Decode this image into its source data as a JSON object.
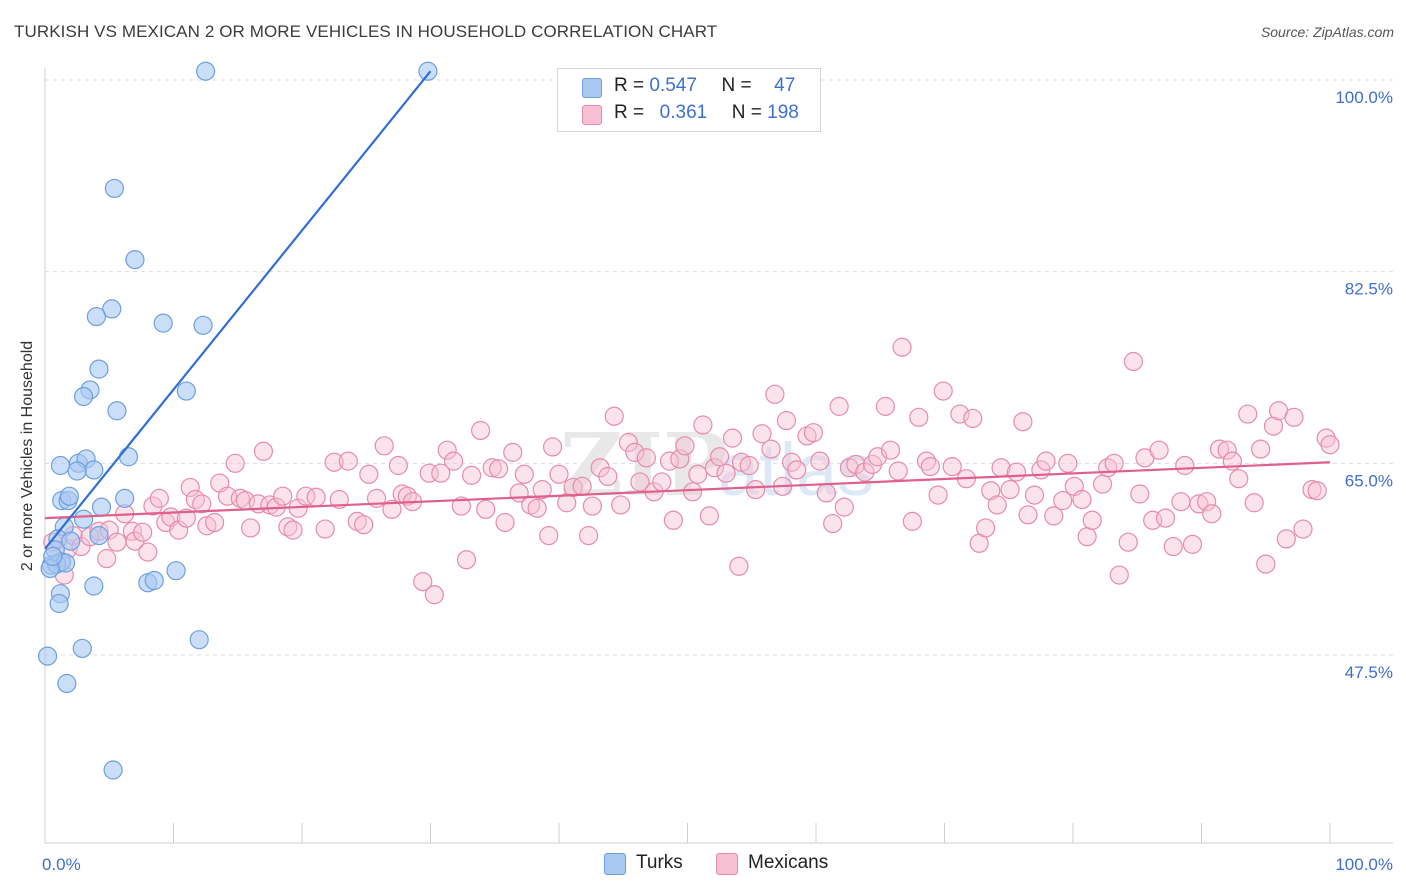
{
  "title": "TURKISH VS MEXICAN 2 OR MORE VEHICLES IN HOUSEHOLD CORRELATION CHART",
  "source": "Source: ZipAtlas.com",
  "colors": {
    "blue_fill": "#a9c8f2",
    "blue_stroke": "#6d9fe0",
    "blue_line": "#2f6fd6",
    "pink_fill": "#f6c0d2",
    "pink_stroke": "#e88bab",
    "pink_line": "#e0608c",
    "axis_text": "#3f6fcf",
    "grid": "#dddddd"
  },
  "legend": {
    "rows": [
      {
        "r_label": "R =",
        "r_value": "0.547",
        "n_label": "N =",
        "n_value": "47"
      },
      {
        "r_label": "R =",
        "r_value": "0.361",
        "n_label": "N =",
        "n_value": "198"
      }
    ]
  },
  "bottom_legend": {
    "turks": "Turks",
    "mexicans": "Mexicans"
  },
  "chart_data": {
    "type": "scatter",
    "title": "TURKISH VS MEXICAN 2 OR MORE VEHICLES IN HOUSEHOLD CORRELATION CHART",
    "xlabel": "",
    "ylabel": "2 or more Vehicles in Household",
    "xlim": [
      0,
      100
    ],
    "ylim": [
      33,
      102
    ],
    "x_tick_labels": [
      "0.0%",
      "100.0%"
    ],
    "y_ticks": [
      47.5,
      65.0,
      82.5,
      100.0
    ],
    "y_tick_labels": [
      "47.5%",
      "65.0%",
      "82.5%",
      "100.0%"
    ],
    "watermark": "ZIPatlas",
    "series": [
      {
        "name": "Turks",
        "r": 0.547,
        "n": 47,
        "trend": {
          "x": [
            0,
            30
          ],
          "y": [
            57.2,
            100.8
          ]
        },
        "points": [
          [
            12.5,
            100.8
          ],
          [
            29.8,
            100.8
          ],
          [
            5.4,
            90.1
          ],
          [
            7.0,
            83.6
          ],
          [
            5.2,
            79.1
          ],
          [
            4.0,
            78.4
          ],
          [
            9.2,
            77.8
          ],
          [
            12.3,
            77.6
          ],
          [
            4.2,
            73.6
          ],
          [
            3.5,
            71.7
          ],
          [
            3.0,
            71.1
          ],
          [
            11.0,
            71.6
          ],
          [
            5.6,
            69.8
          ],
          [
            1.2,
            64.8
          ],
          [
            2.6,
            65.0
          ],
          [
            3.2,
            65.4
          ],
          [
            3.8,
            64.4
          ],
          [
            6.5,
            65.6
          ],
          [
            1.3,
            61.6
          ],
          [
            1.8,
            61.6
          ],
          [
            4.4,
            61.0
          ],
          [
            6.2,
            61.8
          ],
          [
            3.0,
            59.9
          ],
          [
            1.5,
            59.2
          ],
          [
            1.0,
            58.1
          ],
          [
            2.0,
            57.9
          ],
          [
            4.2,
            58.4
          ],
          [
            0.8,
            57.1
          ],
          [
            1.3,
            56.0
          ],
          [
            0.5,
            55.7
          ],
          [
            0.9,
            55.8
          ],
          [
            1.6,
            55.9
          ],
          [
            0.4,
            55.4
          ],
          [
            1.2,
            53.1
          ],
          [
            3.8,
            53.8
          ],
          [
            8.0,
            54.1
          ],
          [
            8.5,
            54.3
          ],
          [
            10.2,
            55.2
          ],
          [
            1.1,
            52.2
          ],
          [
            2.9,
            48.1
          ],
          [
            12.0,
            48.9
          ],
          [
            0.2,
            47.4
          ],
          [
            1.7,
            44.9
          ],
          [
            5.3,
            37.0
          ],
          [
            2.5,
            64.3
          ],
          [
            0.6,
            56.5
          ],
          [
            1.9,
            62.0
          ]
        ]
      },
      {
        "name": "Mexicans",
        "r": 0.361,
        "n": 198,
        "trend": {
          "x": [
            0,
            100
          ],
          "y": [
            60.0,
            65.1
          ]
        },
        "points": [
          [
            0.6,
            57.8
          ],
          [
            1.2,
            56.0
          ],
          [
            1.5,
            54.8
          ],
          [
            1.8,
            57.2
          ],
          [
            2.2,
            58.4
          ],
          [
            2.8,
            57.4
          ],
          [
            3.5,
            58.3
          ],
          [
            4.2,
            58.8
          ],
          [
            4.8,
            56.3
          ],
          [
            5.0,
            58.9
          ],
          [
            5.6,
            57.8
          ],
          [
            6.2,
            60.4
          ],
          [
            6.8,
            58.8
          ],
          [
            7.0,
            57.9
          ],
          [
            7.6,
            58.7
          ],
          [
            8.0,
            56.9
          ],
          [
            8.4,
            61.1
          ],
          [
            8.9,
            61.8
          ],
          [
            9.4,
            59.6
          ],
          [
            9.8,
            60.1
          ],
          [
            10.4,
            58.9
          ],
          [
            11.0,
            60.0
          ],
          [
            11.3,
            62.8
          ],
          [
            11.7,
            61.7
          ],
          [
            12.2,
            61.3
          ],
          [
            12.6,
            59.3
          ],
          [
            13.2,
            59.6
          ],
          [
            13.6,
            63.2
          ],
          [
            14.2,
            62.0
          ],
          [
            14.8,
            65.0
          ],
          [
            15.2,
            61.8
          ],
          [
            15.6,
            61.6
          ],
          [
            16.0,
            59.1
          ],
          [
            16.6,
            61.3
          ],
          [
            17.0,
            66.1
          ],
          [
            17.5,
            61.2
          ],
          [
            18.0,
            61.0
          ],
          [
            18.5,
            62.0
          ],
          [
            18.9,
            59.2
          ],
          [
            19.3,
            58.9
          ],
          [
            19.7,
            60.9
          ],
          [
            20.3,
            62.0
          ],
          [
            21.1,
            61.9
          ],
          [
            21.8,
            59.0
          ],
          [
            22.5,
            65.1
          ],
          [
            22.9,
            61.7
          ],
          [
            23.6,
            65.2
          ],
          [
            24.3,
            59.7
          ],
          [
            24.8,
            59.4
          ],
          [
            25.2,
            64.0
          ],
          [
            25.8,
            61.8
          ],
          [
            26.4,
            66.6
          ],
          [
            27.0,
            60.8
          ],
          [
            27.5,
            64.8
          ],
          [
            27.8,
            62.2
          ],
          [
            28.2,
            62.0
          ],
          [
            28.6,
            61.5
          ],
          [
            29.4,
            54.2
          ],
          [
            29.9,
            64.1
          ],
          [
            30.3,
            53.0
          ],
          [
            30.8,
            64.1
          ],
          [
            31.3,
            66.2
          ],
          [
            31.8,
            65.2
          ],
          [
            32.4,
            61.1
          ],
          [
            32.8,
            56.2
          ],
          [
            33.2,
            63.9
          ],
          [
            33.9,
            68.0
          ],
          [
            34.3,
            60.8
          ],
          [
            34.8,
            64.6
          ],
          [
            35.3,
            64.5
          ],
          [
            35.8,
            59.6
          ],
          [
            36.4,
            66.0
          ],
          [
            36.9,
            62.3
          ],
          [
            37.3,
            64.0
          ],
          [
            37.8,
            61.2
          ],
          [
            38.3,
            60.9
          ],
          [
            38.7,
            62.6
          ],
          [
            39.2,
            58.4
          ],
          [
            39.5,
            66.5
          ],
          [
            40.0,
            64.0
          ],
          [
            40.6,
            61.4
          ],
          [
            41.1,
            62.8
          ],
          [
            41.8,
            62.9
          ],
          [
            42.3,
            58.4
          ],
          [
            42.6,
            61.1
          ],
          [
            43.2,
            64.6
          ],
          [
            43.8,
            63.8
          ],
          [
            44.3,
            69.3
          ],
          [
            44.8,
            61.2
          ],
          [
            45.4,
            66.9
          ],
          [
            45.9,
            66.0
          ],
          [
            46.3,
            63.3
          ],
          [
            46.8,
            65.5
          ],
          [
            47.4,
            62.4
          ],
          [
            48.0,
            63.3
          ],
          [
            48.6,
            65.2
          ],
          [
            48.9,
            59.8
          ],
          [
            49.4,
            65.4
          ],
          [
            49.8,
            66.6
          ],
          [
            50.4,
            62.4
          ],
          [
            50.8,
            64.0
          ],
          [
            51.2,
            68.5
          ],
          [
            51.7,
            60.2
          ],
          [
            52.1,
            64.6
          ],
          [
            52.5,
            65.6
          ],
          [
            53.0,
            64.1
          ],
          [
            53.5,
            67.3
          ],
          [
            54.0,
            55.6
          ],
          [
            54.2,
            65.1
          ],
          [
            54.8,
            64.8
          ],
          [
            55.3,
            62.6
          ],
          [
            55.8,
            67.7
          ],
          [
            56.5,
            66.3
          ],
          [
            56.8,
            71.3
          ],
          [
            57.4,
            62.9
          ],
          [
            57.7,
            68.9
          ],
          [
            58.1,
            65.1
          ],
          [
            58.5,
            64.4
          ],
          [
            59.3,
            67.5
          ],
          [
            59.8,
            67.8
          ],
          [
            60.3,
            65.2
          ],
          [
            60.8,
            62.3
          ],
          [
            61.3,
            59.5
          ],
          [
            61.8,
            70.2
          ],
          [
            62.2,
            61.0
          ],
          [
            62.6,
            64.6
          ],
          [
            63.1,
            64.9
          ],
          [
            63.8,
            64.2
          ],
          [
            64.4,
            64.9
          ],
          [
            64.8,
            65.6
          ],
          [
            65.4,
            70.2
          ],
          [
            65.8,
            66.2
          ],
          [
            66.4,
            64.3
          ],
          [
            66.7,
            75.6
          ],
          [
            67.5,
            59.7
          ],
          [
            68.0,
            69.2
          ],
          [
            68.6,
            65.2
          ],
          [
            68.9,
            64.7
          ],
          [
            69.5,
            62.1
          ],
          [
            69.9,
            71.6
          ],
          [
            70.6,
            64.7
          ],
          [
            71.2,
            69.5
          ],
          [
            71.7,
            63.6
          ],
          [
            72.2,
            69.1
          ],
          [
            72.7,
            57.7
          ],
          [
            73.2,
            59.1
          ],
          [
            73.6,
            62.5
          ],
          [
            74.1,
            61.2
          ],
          [
            74.4,
            64.6
          ],
          [
            75.1,
            62.6
          ],
          [
            75.6,
            64.2
          ],
          [
            76.1,
            68.8
          ],
          [
            76.5,
            60.3
          ],
          [
            77.0,
            62.1
          ],
          [
            77.5,
            64.4
          ],
          [
            77.9,
            65.2
          ],
          [
            78.5,
            60.2
          ],
          [
            79.2,
            61.6
          ],
          [
            79.6,
            65.0
          ],
          [
            80.1,
            62.9
          ],
          [
            80.7,
            61.7
          ],
          [
            81.1,
            58.3
          ],
          [
            81.5,
            59.8
          ],
          [
            82.3,
            63.1
          ],
          [
            82.7,
            64.6
          ],
          [
            83.2,
            65.0
          ],
          [
            83.6,
            54.8
          ],
          [
            84.3,
            57.8
          ],
          [
            84.7,
            74.3
          ],
          [
            85.2,
            62.2
          ],
          [
            85.6,
            65.5
          ],
          [
            86.2,
            59.8
          ],
          [
            86.7,
            66.2
          ],
          [
            87.2,
            60.0
          ],
          [
            87.8,
            57.4
          ],
          [
            88.4,
            61.5
          ],
          [
            88.7,
            64.8
          ],
          [
            89.3,
            57.6
          ],
          [
            89.8,
            61.3
          ],
          [
            90.4,
            61.5
          ],
          [
            90.8,
            60.4
          ],
          [
            91.4,
            66.3
          ],
          [
            92.0,
            66.2
          ],
          [
            92.4,
            65.2
          ],
          [
            92.9,
            63.6
          ],
          [
            93.6,
            69.5
          ],
          [
            94.1,
            61.4
          ],
          [
            94.6,
            66.3
          ],
          [
            95.0,
            55.8
          ],
          [
            95.6,
            68.4
          ],
          [
            96.0,
            69.8
          ],
          [
            96.6,
            58.1
          ],
          [
            97.2,
            69.2
          ],
          [
            97.9,
            59.0
          ],
          [
            98.6,
            62.6
          ],
          [
            99.0,
            62.5
          ],
          [
            99.7,
            67.3
          ],
          [
            100.0,
            66.7
          ]
        ]
      }
    ]
  }
}
